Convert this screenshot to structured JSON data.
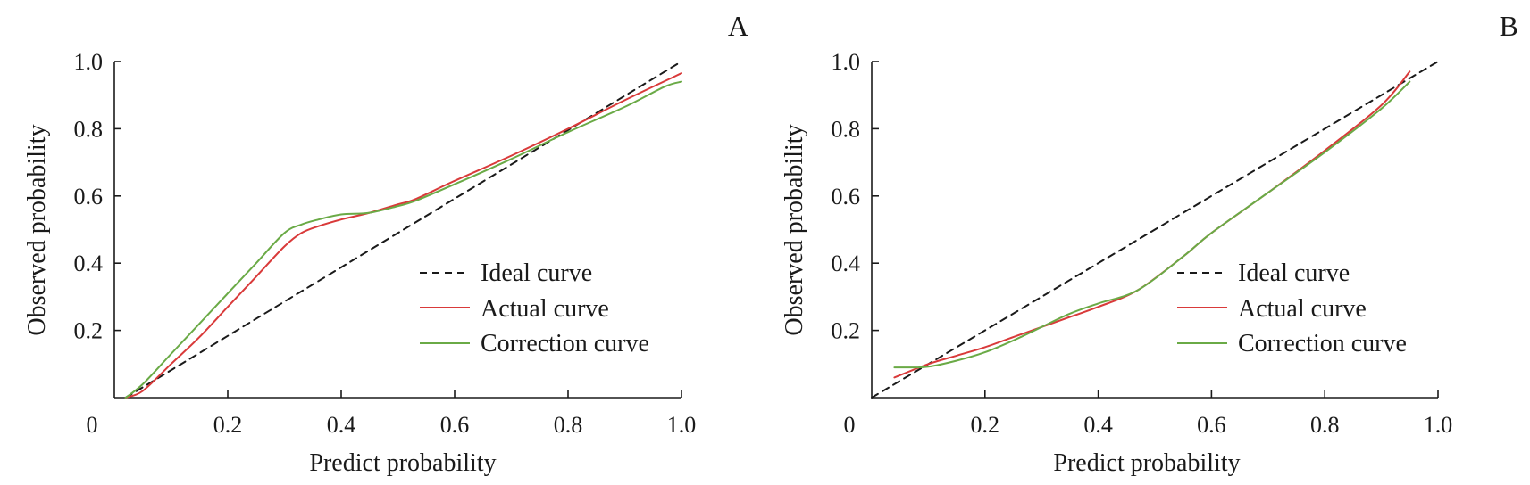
{
  "chart_data": [
    {
      "type": "line",
      "title": "A",
      "xlabel": "Predict probability",
      "ylabel": "Observed probability",
      "xlim": [
        0,
        1.0
      ],
      "ylim": [
        0,
        1.0
      ],
      "x_origin_label": "0",
      "xticks": [
        0.2,
        0.4,
        0.6,
        0.8,
        1.0
      ],
      "xtick_labels": [
        "0.2",
        "0.4",
        "0.6",
        "0.8",
        "1.0"
      ],
      "yticks": [
        0.2,
        0.4,
        0.6,
        0.8,
        1.0
      ],
      "ytick_labels": [
        "0.2",
        "0.4",
        "0.6",
        "0.8",
        "1.0"
      ],
      "legend_position": "bottom-right",
      "series": [
        {
          "name": "Ideal curve",
          "color": "#1a1a1a",
          "dash": true,
          "x": [
            0.02,
            1.0
          ],
          "y": [
            0.0,
            1.0
          ]
        },
        {
          "name": "Actual curve",
          "color": "#d93a3a",
          "dash": false,
          "x": [
            0.02,
            0.05,
            0.1,
            0.15,
            0.2,
            0.25,
            0.3,
            0.33,
            0.36,
            0.4,
            0.45,
            0.5,
            0.53,
            0.6,
            0.7,
            0.8,
            0.9,
            1.0
          ],
          "y": [
            0.0,
            0.02,
            0.1,
            0.18,
            0.27,
            0.36,
            0.45,
            0.49,
            0.51,
            0.53,
            0.55,
            0.575,
            0.59,
            0.645,
            0.72,
            0.8,
            0.885,
            0.965
          ]
        },
        {
          "name": "Correction curve",
          "color": "#6aaa46",
          "dash": false,
          "x": [
            0.02,
            0.05,
            0.1,
            0.15,
            0.2,
            0.25,
            0.3,
            0.33,
            0.36,
            0.4,
            0.45,
            0.5,
            0.53,
            0.6,
            0.7,
            0.8,
            0.9,
            0.97,
            1.0
          ],
          "y": [
            0.0,
            0.04,
            0.13,
            0.22,
            0.31,
            0.4,
            0.49,
            0.515,
            0.53,
            0.545,
            0.55,
            0.57,
            0.585,
            0.635,
            0.71,
            0.79,
            0.865,
            0.925,
            0.94
          ]
        }
      ]
    },
    {
      "type": "line",
      "title": "B",
      "xlabel": "Predict probability",
      "ylabel": "Observed probability",
      "xlim": [
        0,
        1.0
      ],
      "ylim": [
        0,
        1.0
      ],
      "x_origin_label": "0",
      "xticks": [
        0.2,
        0.4,
        0.6,
        0.8,
        1.0
      ],
      "xtick_labels": [
        "0.2",
        "0.4",
        "0.6",
        "0.8",
        "1.0"
      ],
      "yticks": [
        0.2,
        0.4,
        0.6,
        0.8,
        1.0
      ],
      "ytick_labels": [
        "0.2",
        "0.4",
        "0.6",
        "0.8",
        "1.0"
      ],
      "legend_position": "bottom-right",
      "series": [
        {
          "name": "Ideal curve",
          "color": "#1a1a1a",
          "dash": true,
          "x": [
            0.0,
            1.0
          ],
          "y": [
            0.0,
            1.0
          ]
        },
        {
          "name": "Actual curve",
          "color": "#d93a3a",
          "dash": false,
          "x": [
            0.04,
            0.1,
            0.15,
            0.2,
            0.25,
            0.3,
            0.35,
            0.4,
            0.47,
            0.55,
            0.6,
            0.7,
            0.8,
            0.9,
            0.95
          ],
          "y": [
            0.06,
            0.1,
            0.125,
            0.15,
            0.18,
            0.21,
            0.24,
            0.27,
            0.32,
            0.42,
            0.49,
            0.61,
            0.735,
            0.87,
            0.97
          ]
        },
        {
          "name": "Correction curve",
          "color": "#6aaa46",
          "dash": false,
          "x": [
            0.04,
            0.07,
            0.1,
            0.15,
            0.2,
            0.25,
            0.3,
            0.35,
            0.4,
            0.47,
            0.55,
            0.6,
            0.7,
            0.8,
            0.9,
            0.95
          ],
          "y": [
            0.09,
            0.09,
            0.092,
            0.11,
            0.135,
            0.17,
            0.21,
            0.25,
            0.28,
            0.32,
            0.42,
            0.49,
            0.61,
            0.73,
            0.86,
            0.94
          ]
        }
      ]
    }
  ]
}
